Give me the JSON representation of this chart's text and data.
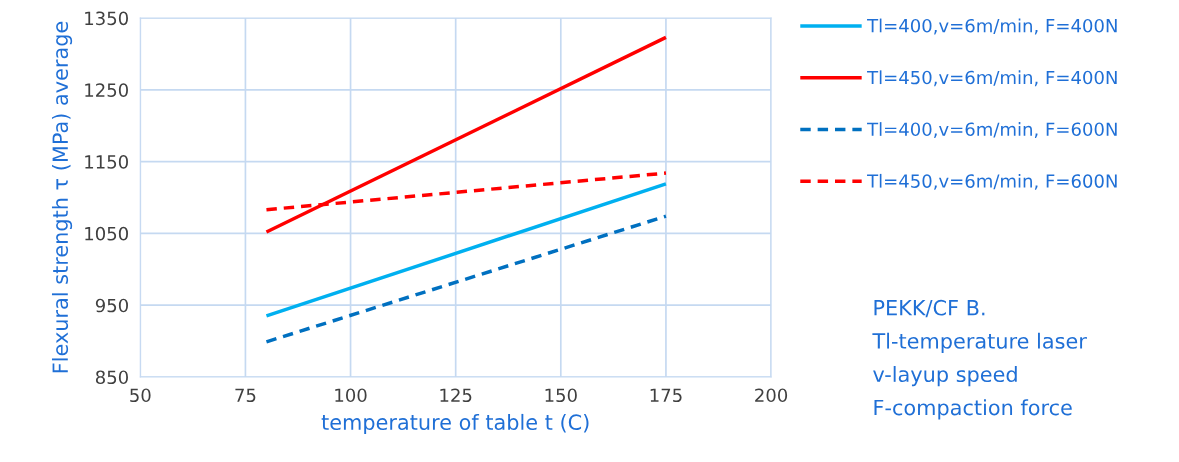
{
  "chart_data": {
    "type": "line",
    "xlabel": "temperature of table t (C)",
    "ylabel": "Flexural strength τ (MPa) average",
    "x": [
      80,
      175
    ],
    "series": [
      {
        "name": "Tl=400,v=6m/min, F=400N",
        "color": "#00b0f0",
        "values": [
          935,
          1119
        ],
        "line_style": "solid"
      },
      {
        "name": "Tl=450,v=6m/min, F=400N",
        "color": "#ff0000",
        "values": [
          1052,
          1323
        ],
        "line_style": "solid"
      },
      {
        "name": "Tl=400,v=6m/min, F=600N",
        "color": "#0070c0",
        "values": [
          899,
          1074
        ],
        "line_style": "dashed"
      },
      {
        "name": "Tl=450,v=6m/min, F=600N",
        "color": "#ff0000",
        "values": [
          1083,
          1134
        ],
        "line_style": "dashed"
      }
    ],
    "xlim": [
      50,
      200
    ],
    "xticks": [
      50,
      75,
      100,
      125,
      150,
      175,
      200
    ],
    "ylim": [
      850,
      1350
    ],
    "yticks": [
      850,
      950,
      1050,
      1150,
      1250,
      1350
    ],
    "grid": true,
    "legend": "right",
    "marker": "none",
    "annotations": [
      "PEKK/CF B.",
      "Tl-temperature laser",
      "v-layup speed",
      "F-compaction force"
    ]
  }
}
